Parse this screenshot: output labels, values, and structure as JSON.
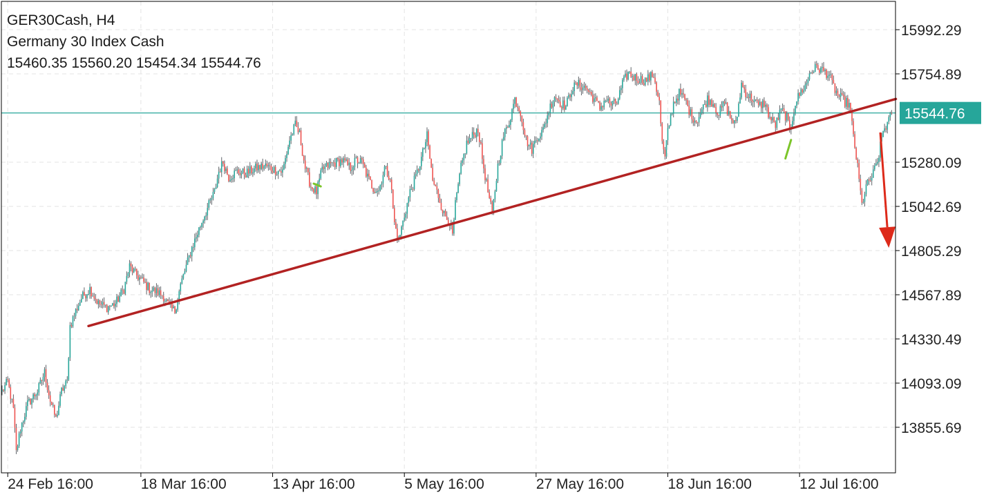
{
  "header": {
    "symbol_timeframe": "GER30Cash, H4",
    "description": "Germany 30 Index Cash",
    "ohlc": "15460.35 15560.20 15454.34 15544.76"
  },
  "colors": {
    "bull": "#26a69a",
    "bear": "#ef5350",
    "wick": "#5f6368",
    "trendline": "#b22222",
    "arrow": "#dd2a1a",
    "marker": "#7cc52a",
    "price_line": "#26a69a",
    "grid": "#e3e3e3",
    "axis": "#000000"
  },
  "chart_data": {
    "type": "candlestick",
    "symbol": "GER30Cash",
    "timeframe": "H4",
    "last_price": 15544.76,
    "current_price_label": "15544.76",
    "ylim": [
      13640,
      16160
    ],
    "y_ticks": [
      15992.29,
      15754.89,
      15280.09,
      15042.69,
      14805.29,
      14567.89,
      14330.49,
      14093.09,
      13855.69
    ],
    "y_tick_labels": [
      "15992.29",
      "15754.89",
      "15280.09",
      "15042.69",
      "14805.29",
      "14567.89",
      "14330.49",
      "14093.09",
      "13855.69"
    ],
    "x_ticks": [
      {
        "bar": 4,
        "label": "24 Feb 16:00"
      },
      {
        "bar": 98,
        "label": "18 Mar 16:00"
      },
      {
        "bar": 191,
        "label": "13 Apr 16:00"
      },
      {
        "bar": 284,
        "label": "5 May 16:00"
      },
      {
        "bar": 377,
        "label": "27 May 16:00"
      },
      {
        "bar": 470,
        "label": "18 Jun 16:00"
      },
      {
        "bar": 563,
        "label": "12 Jul 16:00"
      }
    ],
    "bar_count": 630,
    "grid": true,
    "path_anchors": [
      [
        0,
        14050
      ],
      [
        4,
        14100
      ],
      [
        8,
        13950
      ],
      [
        10,
        13720
      ],
      [
        13,
        13850
      ],
      [
        18,
        13980
      ],
      [
        25,
        14050
      ],
      [
        30,
        14150
      ],
      [
        34,
        14000
      ],
      [
        38,
        13900
      ],
      [
        42,
        14050
      ],
      [
        46,
        14100
      ],
      [
        48,
        14400
      ],
      [
        52,
        14480
      ],
      [
        56,
        14550
      ],
      [
        62,
        14600
      ],
      [
        68,
        14520
      ],
      [
        74,
        14500
      ],
      [
        80,
        14520
      ],
      [
        86,
        14600
      ],
      [
        90,
        14720
      ],
      [
        94,
        14680
      ],
      [
        98,
        14650
      ],
      [
        104,
        14600
      ],
      [
        110,
        14580
      ],
      [
        114,
        14560
      ],
      [
        118,
        14500
      ],
      [
        122,
        14480
      ],
      [
        126,
        14620
      ],
      [
        130,
        14720
      ],
      [
        134,
        14820
      ],
      [
        138,
        14900
      ],
      [
        142,
        14980
      ],
      [
        146,
        15050
      ],
      [
        150,
        15120
      ],
      [
        153,
        15230
      ],
      [
        156,
        15280
      ],
      [
        160,
        15200
      ],
      [
        166,
        15230
      ],
      [
        172,
        15220
      ],
      [
        180,
        15250
      ],
      [
        186,
        15260
      ],
      [
        192,
        15240
      ],
      [
        198,
        15230
      ],
      [
        203,
        15400
      ],
      [
        207,
        15480
      ],
      [
        210,
        15430
      ],
      [
        214,
        15250
      ],
      [
        218,
        15150
      ],
      [
        222,
        15120
      ],
      [
        226,
        15240
      ],
      [
        232,
        15270
      ],
      [
        240,
        15290
      ],
      [
        246,
        15250
      ],
      [
        250,
        15290
      ],
      [
        254,
        15280
      ],
      [
        258,
        15200
      ],
      [
        262,
        15140
      ],
      [
        266,
        15130
      ],
      [
        270,
        15250
      ],
      [
        274,
        15200
      ],
      [
        277,
        14950
      ],
      [
        280,
        14860
      ],
      [
        283,
        14960
      ],
      [
        288,
        15120
      ],
      [
        292,
        15200
      ],
      [
        296,
        15300
      ],
      [
        300,
        15420
      ],
      [
        304,
        15180
      ],
      [
        308,
        15100
      ],
      [
        312,
        15000
      ],
      [
        316,
        14960
      ],
      [
        318,
        14880
      ],
      [
        320,
        15050
      ],
      [
        324,
        15250
      ],
      [
        328,
        15380
      ],
      [
        332,
        15420
      ],
      [
        336,
        15460
      ],
      [
        340,
        15250
      ],
      [
        344,
        15080
      ],
      [
        346,
        15000
      ],
      [
        350,
        15260
      ],
      [
        354,
        15420
      ],
      [
        358,
        15500
      ],
      [
        362,
        15620
      ],
      [
        366,
        15550
      ],
      [
        370,
        15400
      ],
      [
        374,
        15350
      ],
      [
        378,
        15420
      ],
      [
        382,
        15450
      ],
      [
        386,
        15560
      ],
      [
        390,
        15640
      ],
      [
        394,
        15600
      ],
      [
        398,
        15580
      ],
      [
        402,
        15670
      ],
      [
        406,
        15700
      ],
      [
        412,
        15680
      ],
      [
        418,
        15620
      ],
      [
        422,
        15570
      ],
      [
        426,
        15620
      ],
      [
        430,
        15590
      ],
      [
        434,
        15600
      ],
      [
        438,
        15700
      ],
      [
        442,
        15760
      ],
      [
        448,
        15730
      ],
      [
        454,
        15720
      ],
      [
        460,
        15750
      ],
      [
        464,
        15600
      ],
      [
        466,
        15380
      ],
      [
        468,
        15300
      ],
      [
        470,
        15450
      ],
      [
        474,
        15600
      ],
      [
        478,
        15650
      ],
      [
        482,
        15620
      ],
      [
        486,
        15540
      ],
      [
        490,
        15500
      ],
      [
        494,
        15560
      ],
      [
        498,
        15620
      ],
      [
        502,
        15600
      ],
      [
        506,
        15540
      ],
      [
        510,
        15600
      ],
      [
        514,
        15520
      ],
      [
        518,
        15480
      ],
      [
        522,
        15700
      ],
      [
        526,
        15640
      ],
      [
        530,
        15620
      ],
      [
        534,
        15580
      ],
      [
        538,
        15600
      ],
      [
        542,
        15520
      ],
      [
        546,
        15480
      ],
      [
        550,
        15560
      ],
      [
        554,
        15520
      ],
      [
        556,
        15440
      ],
      [
        560,
        15600
      ],
      [
        564,
        15660
      ],
      [
        568,
        15700
      ],
      [
        570,
        15760
      ],
      [
        575,
        15790
      ],
      [
        580,
        15770
      ],
      [
        584,
        15750
      ],
      [
        586,
        15700
      ],
      [
        590,
        15640
      ],
      [
        594,
        15610
      ],
      [
        598,
        15590
      ],
      [
        600,
        15480
      ],
      [
        604,
        15250
      ],
      [
        607,
        15050
      ],
      [
        610,
        15150
      ],
      [
        614,
        15200
      ],
      [
        618,
        15280
      ],
      [
        622,
        15450
      ],
      [
        626,
        15500
      ],
      [
        628,
        15545
      ]
    ],
    "trendline": {
      "start": {
        "bar": 61,
        "price": 14400
      },
      "end": {
        "bar": 631,
        "price": 15620
      }
    },
    "arrow": {
      "start": {
        "bar": 620,
        "price": 15440
      },
      "end": {
        "bar": 626,
        "price": 14820
      }
    },
    "markers": [
      {
        "start": {
          "bar": 220,
          "price": 15165
        },
        "end": {
          "bar": 225,
          "price": 15150
        }
      },
      {
        "start": {
          "bar": 553,
          "price": 15300
        },
        "end": {
          "bar": 557,
          "price": 15400
        }
      }
    ]
  }
}
